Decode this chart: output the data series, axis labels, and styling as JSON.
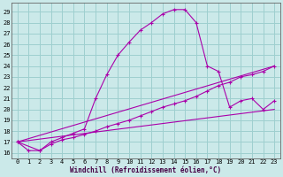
{
  "xlabel": "Windchill (Refroidissement éolien,°C)",
  "bg_color": "#cbe9e9",
  "grid_color": "#9ecfcf",
  "line_color": "#aa00aa",
  "xlim": [
    -0.5,
    23.5
  ],
  "ylim": [
    15.5,
    29.8
  ],
  "yticks": [
    16,
    17,
    18,
    19,
    20,
    21,
    22,
    23,
    24,
    25,
    26,
    27,
    28,
    29
  ],
  "xticks": [
    0,
    1,
    2,
    3,
    4,
    5,
    6,
    7,
    8,
    9,
    10,
    11,
    12,
    13,
    14,
    15,
    16,
    17,
    18,
    19,
    20,
    21,
    22,
    23
  ],
  "curve1_x": [
    0,
    1,
    2,
    3,
    4,
    5,
    6,
    7,
    8,
    9,
    10,
    11,
    12,
    13,
    14,
    15,
    16,
    17,
    18,
    19,
    20,
    21,
    22,
    23
  ],
  "curve1_y": [
    17.0,
    16.2,
    16.2,
    17.0,
    17.4,
    17.8,
    18.2,
    21.0,
    23.2,
    25.0,
    26.2,
    27.3,
    28.0,
    28.8,
    29.2,
    29.2,
    28.0,
    24.0,
    23.5,
    20.2,
    20.8,
    21.0,
    20.0,
    20.8
  ],
  "curve2_x": [
    0,
    2,
    3,
    4,
    5,
    6,
    7,
    8,
    9,
    10,
    11,
    12,
    13,
    14,
    15,
    16,
    17,
    18,
    19,
    20,
    21,
    22,
    23
  ],
  "curve2_y": [
    17.0,
    16.2,
    16.8,
    17.2,
    17.4,
    17.7,
    18.0,
    18.4,
    18.7,
    19.0,
    19.4,
    19.8,
    20.2,
    20.5,
    20.8,
    21.2,
    21.7,
    22.2,
    22.5,
    23.0,
    23.2,
    23.5,
    24.0
  ],
  "line1_x": [
    0,
    23
  ],
  "line1_y": [
    17.0,
    20.0
  ],
  "line2_x": [
    0,
    23
  ],
  "line2_y": [
    17.0,
    24.0
  ]
}
